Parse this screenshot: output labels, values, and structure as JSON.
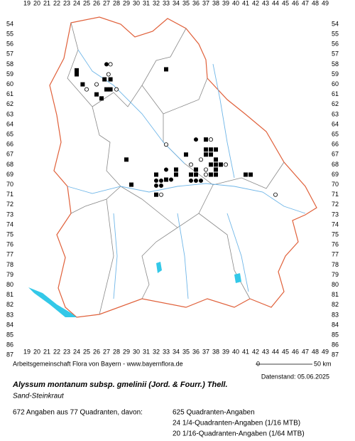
{
  "map": {
    "x_labels": [
      19,
      20,
      21,
      22,
      23,
      24,
      25,
      26,
      27,
      28,
      29,
      30,
      31,
      32,
      33,
      34,
      35,
      36,
      37,
      38,
      39,
      40,
      41,
      42,
      43,
      44,
      45,
      46,
      47,
      48,
      49
    ],
    "y_labels": [
      54,
      55,
      56,
      57,
      58,
      59,
      60,
      61,
      62,
      63,
      64,
      65,
      66,
      67,
      68,
      69,
      70,
      71,
      72,
      73,
      74,
      75,
      76,
      77,
      78,
      79,
      80,
      81,
      82,
      83,
      84,
      85,
      86,
      87
    ],
    "credit": "Arbeitsgemeinschaft Flora von Bayern - www.bayernflora.de",
    "scale_start": "0",
    "scale_end": "50 km",
    "date": "Datenstand: 05.06.2025",
    "title": "Alyssum montanum subsp. gmelinii (Jord. & Fourr.) Thell.",
    "subtitle": "Sand-Steinkraut",
    "summary": "672 Angaben aus 77 Quadranten, davon:",
    "counts": [
      "625 Quadranten-Angaben",
      "24 1/4-Quadranten-Angaben (1/16 MTB)",
      "20 1/16-Quadranten-Angaben (1/64 MTB)"
    ]
  }
}
